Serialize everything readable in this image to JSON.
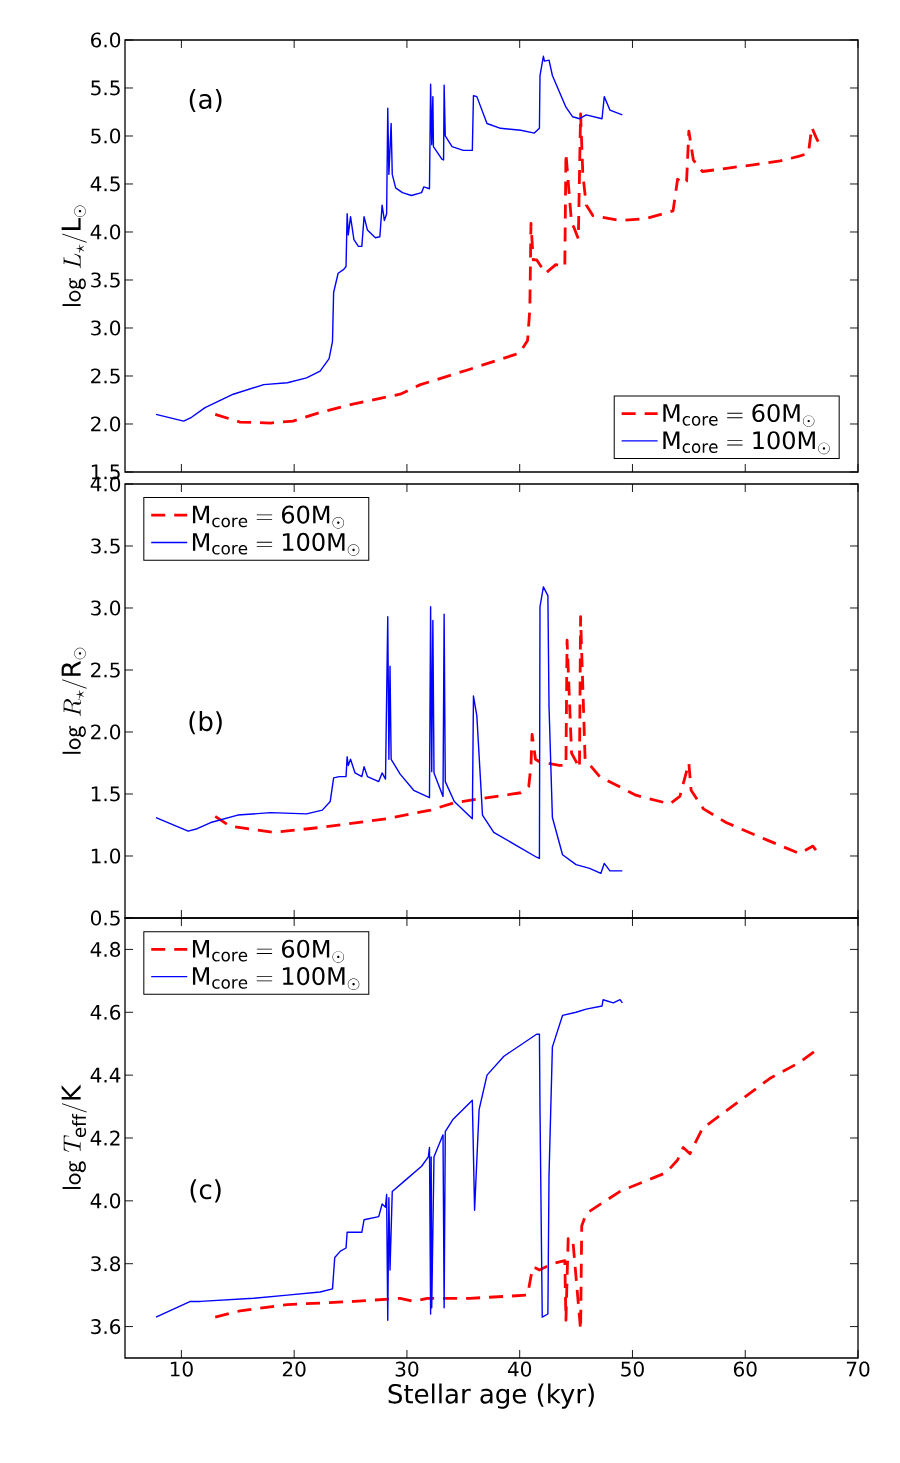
{
  "chart_data": [
    {
      "type": "line",
      "ylabel": "\\mathsf{log}\\ L_{\\star}/\\mathrm{L}_{\\odot}",
      "annotations": [
        "(a)"
      ],
      "xlim": [
        5,
        70
      ],
      "xticks": [
        10,
        20,
        30,
        40,
        50,
        60,
        70
      ],
      "ylim": [
        1.5,
        6.0
      ],
      "yticks": [
        {
          "value": 1.5,
          "label": "1.5"
        },
        {
          "value": 2,
          "label": "2.0"
        },
        {
          "value": 2.5,
          "label": "2.5"
        },
        {
          "value": 3,
          "label": "3.0"
        },
        {
          "value": 3.5,
          "label": "3.5"
        },
        {
          "value": 4,
          "label": "4.0"
        },
        {
          "value": 4.5,
          "label": "4.5"
        },
        {
          "value": 5,
          "label": "5.0"
        },
        {
          "value": 5.5,
          "label": "5.5"
        },
        {
          "value": 6,
          "label": "6.0"
        }
      ],
      "tick_labels": "y",
      "legend": "bottom right",
      "series": [
        {
          "name": "\\mathrm{M_{core}=60M_{\\odot}}",
          "color": "#ff0000",
          "line_style": "dashed",
          "x": [
            13.0,
            15.2,
            17.9,
            19.9,
            22.3,
            25.3,
            29.4,
            31.2,
            35.3,
            39.5,
            40.0,
            40.7,
            40.9,
            41.0,
            41.2,
            41.5,
            42.3,
            43.2,
            44.0,
            44.1,
            44.6,
            44.8,
            45.2,
            45.4,
            45.6,
            45.9,
            46.5,
            48.9,
            51.2,
            53.6,
            54.0,
            54.5,
            54.8,
            55.0,
            55.4,
            56.2,
            58.8,
            60.7,
            63.1,
            64.8,
            65.6,
            65.9,
            66.3,
            66.6
          ],
          "values": [
            2.1,
            2.02,
            2.01,
            2.03,
            2.12,
            2.21,
            2.31,
            2.41,
            2.56,
            2.72,
            2.74,
            2.87,
            3.2,
            4.09,
            3.71,
            3.71,
            3.57,
            3.66,
            3.64,
            4.82,
            4.09,
            4.05,
            3.93,
            5.23,
            4.6,
            4.28,
            4.17,
            4.12,
            4.14,
            4.22,
            4.55,
            4.5,
            4.53,
            5.05,
            4.75,
            4.63,
            4.67,
            4.7,
            4.74,
            4.79,
            4.82,
            5.09,
            4.98,
            4.91
          ]
        },
        {
          "name": "\\mathrm{M_{core}=100M_{\\odot}}",
          "color": "#0000ff",
          "line_style": "solid",
          "x": [
            7.75,
            10.2,
            10.9,
            12.1,
            14.6,
            17.3,
            19.4,
            21.1,
            22.3,
            23.1,
            23.4,
            23.5,
            23.9,
            24.4,
            24.6,
            24.7,
            24.8,
            25.0,
            25.3,
            25.7,
            26.0,
            26.2,
            26.5,
            27.2,
            27.6,
            27.8,
            28.0,
            28.2,
            28.3,
            28.4,
            28.6,
            28.7,
            29.0,
            29.6,
            30.4,
            31.3,
            31.5,
            32.0,
            32.1,
            32.2,
            32.3,
            32.35,
            33.1,
            33.25,
            33.3,
            33.4,
            34.0,
            35.0,
            35.8,
            35.9,
            36.2,
            37.1,
            38.3,
            40.1,
            41.3,
            41.75,
            41.8,
            42.1,
            42.2,
            42.6,
            42.9,
            44.1,
            44.7,
            45.3,
            45.9,
            47.3,
            47.5,
            48.0,
            49.1
          ],
          "values": [
            2.1,
            2.03,
            2.07,
            2.17,
            2.31,
            2.41,
            2.43,
            2.48,
            2.55,
            2.68,
            2.86,
            3.37,
            3.57,
            3.61,
            3.64,
            4.19,
            3.97,
            4.16,
            3.92,
            3.85,
            3.85,
            4.16,
            4.02,
            3.94,
            3.95,
            4.28,
            4.12,
            4.19,
            5.29,
            4.6,
            5.13,
            4.6,
            4.46,
            4.41,
            4.38,
            4.41,
            4.47,
            4.45,
            5.54,
            4.91,
            5.41,
            4.89,
            4.76,
            4.75,
            5.53,
            5.0,
            4.89,
            4.85,
            4.85,
            5.42,
            5.41,
            5.13,
            5.08,
            5.06,
            5.03,
            5.08,
            5.63,
            5.83,
            5.78,
            5.79,
            5.63,
            5.3,
            5.2,
            5.18,
            5.22,
            5.18,
            5.41,
            5.27,
            5.22
          ]
        }
      ]
    },
    {
      "type": "line",
      "ylabel": "\\mathsf{log}\\ R_{\\star}/\\mathrm{R}_{\\odot}",
      "annotations": [
        "(b)"
      ],
      "xlim": [
        5,
        70
      ],
      "xticks": [
        10,
        20,
        30,
        40,
        50,
        60,
        70
      ],
      "ylim": [
        0.5,
        4.0
      ],
      "yticks": [
        0.5,
        {
          "value": 1,
          "label": "1.0"
        },
        1.5,
        {
          "value": 2,
          "label": "2.0"
        },
        2.5,
        {
          "value": 3,
          "label": "3.0"
        },
        3.5,
        {
          "value": 4,
          "label": "4.0"
        }
      ],
      "tick_labels": "y",
      "legend": "top left",
      "series": [
        {
          "name": "\\mathrm{M_{core}=60M_{\\odot}}",
          "color": "#ff0000",
          "line_style": "dashed",
          "x": [
            13.0,
            14.3,
            18.2,
            22.3,
            28.2,
            32.1,
            34.2,
            40.1,
            40.8,
            41.0,
            41.1,
            41.4,
            41.75,
            43.5,
            44.1,
            44.2,
            44.6,
            45.3,
            45.4,
            45.8,
            47.1,
            50.3,
            53.3,
            54.2,
            55.0,
            55.2,
            56.3,
            58.3,
            61.9,
            64.8,
            66.0,
            66.5
          ],
          "values": [
            1.32,
            1.24,
            1.19,
            1.23,
            1.3,
            1.37,
            1.43,
            1.51,
            1.56,
            1.73,
            1.98,
            1.78,
            1.76,
            1.73,
            1.73,
            2.74,
            1.83,
            1.71,
            2.93,
            1.78,
            1.64,
            1.49,
            1.42,
            1.48,
            1.75,
            1.53,
            1.38,
            1.27,
            1.13,
            1.02,
            1.08,
            1.02
          ]
        },
        {
          "name": "\\mathrm{M_{core}=100M_{\\odot}}",
          "color": "#0000ff",
          "line_style": "solid",
          "x": [
            7.75,
            10.6,
            11.4,
            12.6,
            15.0,
            17.9,
            21.1,
            22.5,
            23.2,
            23.5,
            24.0,
            24.6,
            24.7,
            24.8,
            25.0,
            25.4,
            26.0,
            26.2,
            26.5,
            27.5,
            27.8,
            28.1,
            28.3,
            28.4,
            28.5,
            28.6,
            29.4,
            30.6,
            32.0,
            32.1,
            32.2,
            32.3,
            32.4,
            33.2,
            33.3,
            33.4,
            34.2,
            35.8,
            35.9,
            36.2,
            36.7,
            37.7,
            39.8,
            41.5,
            41.75,
            41.8,
            42.1,
            42.5,
            42.6,
            42.9,
            43.8,
            45.0,
            46.2,
            47.2,
            47.5,
            48.0,
            49.1
          ],
          "values": [
            1.31,
            1.2,
            1.22,
            1.27,
            1.33,
            1.35,
            1.34,
            1.37,
            1.44,
            1.63,
            1.64,
            1.64,
            1.8,
            1.73,
            1.78,
            1.67,
            1.64,
            1.72,
            1.64,
            1.6,
            1.67,
            1.62,
            2.93,
            1.78,
            2.53,
            1.78,
            1.66,
            1.53,
            1.47,
            3.01,
            1.68,
            2.9,
            1.67,
            1.48,
            2.95,
            1.6,
            1.44,
            1.3,
            2.29,
            2.13,
            1.33,
            1.19,
            1.08,
            0.99,
            0.98,
            3.01,
            3.17,
            3.1,
            2.21,
            1.31,
            1.01,
            0.93,
            0.9,
            0.86,
            0.94,
            0.88,
            0.88
          ]
        }
      ]
    },
    {
      "type": "line",
      "xlabel": "Stellar age (kyr)",
      "ylabel": "\\mathsf{log}\\ T_{\\mathrm{eff}}/\\mathrm{K}",
      "annotations": [
        "(c)"
      ],
      "xlim": [
        5,
        70
      ],
      "xticks": [
        10,
        20,
        30,
        40,
        50,
        60,
        70
      ],
      "ylim": [
        3.5,
        4.9
      ],
      "yticks": [
        {
          "value": 3.6,
          "label": "3.6"
        },
        {
          "value": 3.8,
          "label": "3.8"
        },
        {
          "value": 4,
          "label": "4.0"
        },
        {
          "value": 4.2,
          "label": "4.2"
        },
        {
          "value": 4.4,
          "label": "4.4"
        },
        {
          "value": 4.6,
          "label": "4.6"
        },
        {
          "value": 4.8,
          "label": "4.8"
        }
      ],
      "legend": "top left",
      "series": [
        {
          "name": "\\mathrm{M_{core}=60M_{\\odot}}",
          "color": "#ff0000",
          "line_style": "dashed",
          "x": [
            13.0,
            15.2,
            19.4,
            25.3,
            29.4,
            30.6,
            31.8,
            35.6,
            40.7,
            41.0,
            41.2,
            41.75,
            42.9,
            44.0,
            44.1,
            44.3,
            44.7,
            45.4,
            45.5,
            45.9,
            48.9,
            53.0,
            54.0,
            54.5,
            55.1,
            56.2,
            59.2,
            62.2,
            64.8,
            66.3
          ],
          "values": [
            3.63,
            3.65,
            3.67,
            3.68,
            3.69,
            3.68,
            3.69,
            3.69,
            3.7,
            3.76,
            3.79,
            3.78,
            3.8,
            3.81,
            3.62,
            3.88,
            3.88,
            3.59,
            3.92,
            3.96,
            4.03,
            4.09,
            4.13,
            4.17,
            4.15,
            4.23,
            4.31,
            4.39,
            4.44,
            4.48
          ]
        },
        {
          "name": "\\mathrm{M_{core}=100M_{\\odot}}",
          "color": "#0000ff",
          "line_style": "solid",
          "x": [
            7.75,
            10.8,
            11.7,
            16.4,
            19.4,
            22.3,
            23.4,
            23.6,
            24.1,
            24.6,
            24.7,
            25.3,
            26.0,
            26.2,
            27.5,
            27.8,
            28.1,
            28.2,
            28.3,
            28.4,
            28.5,
            28.7,
            30.0,
            31.3,
            31.9,
            32.0,
            32.1,
            32.15,
            32.2,
            32.4,
            33.2,
            33.3,
            33.4,
            34.1,
            35.8,
            36.0,
            36.4,
            37.1,
            38.6,
            41.5,
            41.75,
            41.8,
            42.0,
            42.5,
            42.6,
            42.9,
            43.8,
            45.0,
            45.9,
            47.3,
            47.4,
            48.3,
            48.9,
            49.1
          ],
          "values": [
            3.63,
            3.68,
            3.68,
            3.69,
            3.7,
            3.71,
            3.72,
            3.82,
            3.84,
            3.85,
            3.9,
            3.9,
            3.9,
            3.94,
            3.95,
            3.99,
            3.98,
            4.02,
            3.62,
            4.01,
            3.78,
            4.03,
            4.07,
            4.11,
            4.14,
            4.17,
            3.64,
            4.14,
            3.66,
            4.14,
            4.21,
            3.66,
            4.22,
            4.26,
            4.32,
            3.97,
            4.29,
            4.4,
            4.46,
            4.53,
            4.53,
            4.29,
            3.63,
            3.64,
            4.08,
            4.49,
            4.59,
            4.6,
            4.61,
            4.62,
            4.64,
            4.63,
            4.64,
            4.63
          ]
        }
      ]
    }
  ]
}
